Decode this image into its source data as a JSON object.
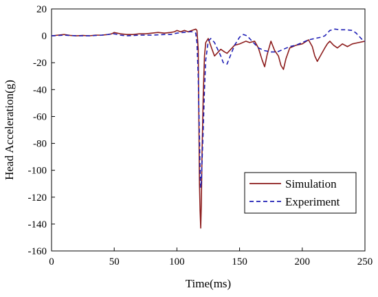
{
  "chart_data": {
    "type": "line",
    "title": "",
    "xlabel": "Time(ms)",
    "ylabel": "Head Acceleration(g)",
    "xlim": [
      0,
      250
    ],
    "ylim": [
      -160,
      20
    ],
    "xticks": [
      "0",
      "50",
      "100",
      "150",
      "200",
      "250"
    ],
    "yticks": [
      "20",
      "0",
      "-20",
      "-40",
      "-60",
      "-80",
      "-100",
      "-120",
      "-140",
      "-160"
    ],
    "grid": false,
    "legend_position": "lower-right",
    "series": [
      {
        "name": "Simulation",
        "color": "#8b1a1a",
        "style": "solid",
        "points": [
          [
            0,
            0
          ],
          [
            5,
            0.5
          ],
          [
            10,
            1
          ],
          [
            15,
            0.3
          ],
          [
            20,
            0
          ],
          [
            25,
            0.3
          ],
          [
            30,
            0
          ],
          [
            35,
            0.5
          ],
          [
            40,
            0.5
          ],
          [
            45,
            1
          ],
          [
            48,
            1.5
          ],
          [
            50,
            2.5
          ],
          [
            55,
            1.5
          ],
          [
            60,
            1
          ],
          [
            65,
            1
          ],
          [
            70,
            1.5
          ],
          [
            75,
            1.5
          ],
          [
            80,
            2
          ],
          [
            85,
            2.5
          ],
          [
            90,
            2
          ],
          [
            95,
            2.5
          ],
          [
            98,
            3
          ],
          [
            100,
            4
          ],
          [
            103,
            3
          ],
          [
            106,
            4
          ],
          [
            109,
            3
          ],
          [
            112,
            4
          ],
          [
            115,
            5
          ],
          [
            116,
            4
          ],
          [
            117,
            -10
          ],
          [
            117.5,
            -60
          ],
          [
            118,
            -110
          ],
          [
            118.5,
            -130
          ],
          [
            119,
            -143
          ],
          [
            119.5,
            -125
          ],
          [
            120,
            -90
          ],
          [
            121,
            -45
          ],
          [
            122,
            -15
          ],
          [
            123,
            -5
          ],
          [
            125,
            -2
          ],
          [
            128,
            -10
          ],
          [
            130,
            -15
          ],
          [
            132,
            -13
          ],
          [
            135,
            -10
          ],
          [
            138,
            -12
          ],
          [
            140,
            -13
          ],
          [
            143,
            -10
          ],
          [
            146,
            -7
          ],
          [
            150,
            -6
          ],
          [
            155,
            -4
          ],
          [
            158,
            -5
          ],
          [
            162,
            -4
          ],
          [
            165,
            -9
          ],
          [
            168,
            -18
          ],
          [
            170,
            -23
          ],
          [
            172,
            -14
          ],
          [
            175,
            -4
          ],
          [
            178,
            -11
          ],
          [
            181,
            -15
          ],
          [
            183,
            -22
          ],
          [
            185,
            -25
          ],
          [
            187,
            -17
          ],
          [
            190,
            -9
          ],
          [
            195,
            -7
          ],
          [
            200,
            -6
          ],
          [
            205,
            -3
          ],
          [
            208,
            -8
          ],
          [
            210,
            -15
          ],
          [
            212,
            -19
          ],
          [
            215,
            -14
          ],
          [
            218,
            -9
          ],
          [
            220,
            -6
          ],
          [
            222,
            -4
          ],
          [
            225,
            -7
          ],
          [
            228,
            -9
          ],
          [
            232,
            -6
          ],
          [
            236,
            -8
          ],
          [
            240,
            -6
          ],
          [
            245,
            -5
          ],
          [
            250,
            -4
          ]
        ]
      },
      {
        "name": "Experiment",
        "color": "#1c1cb4",
        "style": "dashed",
        "points": [
          [
            0,
            0
          ],
          [
            10,
            0.5
          ],
          [
            20,
            0
          ],
          [
            30,
            0
          ],
          [
            40,
            0.5
          ],
          [
            50,
            1.5
          ],
          [
            55,
            0.5
          ],
          [
            60,
            0
          ],
          [
            70,
            0.5
          ],
          [
            80,
            0.5
          ],
          [
            90,
            1
          ],
          [
            95,
            1
          ],
          [
            100,
            2
          ],
          [
            105,
            2.5
          ],
          [
            110,
            3
          ],
          [
            113,
            3
          ],
          [
            115,
            2
          ],
          [
            116,
            -5
          ],
          [
            117,
            -30
          ],
          [
            118,
            -75
          ],
          [
            118.5,
            -100
          ],
          [
            119,
            -113
          ],
          [
            119.5,
            -108
          ],
          [
            120,
            -95
          ],
          [
            121,
            -70
          ],
          [
            122,
            -40
          ],
          [
            123,
            -18
          ],
          [
            125,
            -4
          ],
          [
            127,
            -2
          ],
          [
            130,
            -5
          ],
          [
            132,
            -9
          ],
          [
            135,
            -15
          ],
          [
            137,
            -20
          ],
          [
            140,
            -21
          ],
          [
            143,
            -14
          ],
          [
            146,
            -7
          ],
          [
            150,
            -1
          ],
          [
            153,
            1
          ],
          [
            156,
            0
          ],
          [
            160,
            -4
          ],
          [
            165,
            -9
          ],
          [
            170,
            -11
          ],
          [
            175,
            -12
          ],
          [
            180,
            -12
          ],
          [
            185,
            -10
          ],
          [
            190,
            -8
          ],
          [
            195,
            -7
          ],
          [
            200,
            -5
          ],
          [
            205,
            -3
          ],
          [
            210,
            -2
          ],
          [
            215,
            -1
          ],
          [
            218,
            0
          ],
          [
            222,
            4
          ],
          [
            226,
            5
          ],
          [
            230,
            4.5
          ],
          [
            235,
            4.5
          ],
          [
            240,
            4
          ],
          [
            243,
            2
          ],
          [
            246,
            -1
          ],
          [
            248,
            -3
          ],
          [
            250,
            -4
          ]
        ]
      }
    ]
  }
}
